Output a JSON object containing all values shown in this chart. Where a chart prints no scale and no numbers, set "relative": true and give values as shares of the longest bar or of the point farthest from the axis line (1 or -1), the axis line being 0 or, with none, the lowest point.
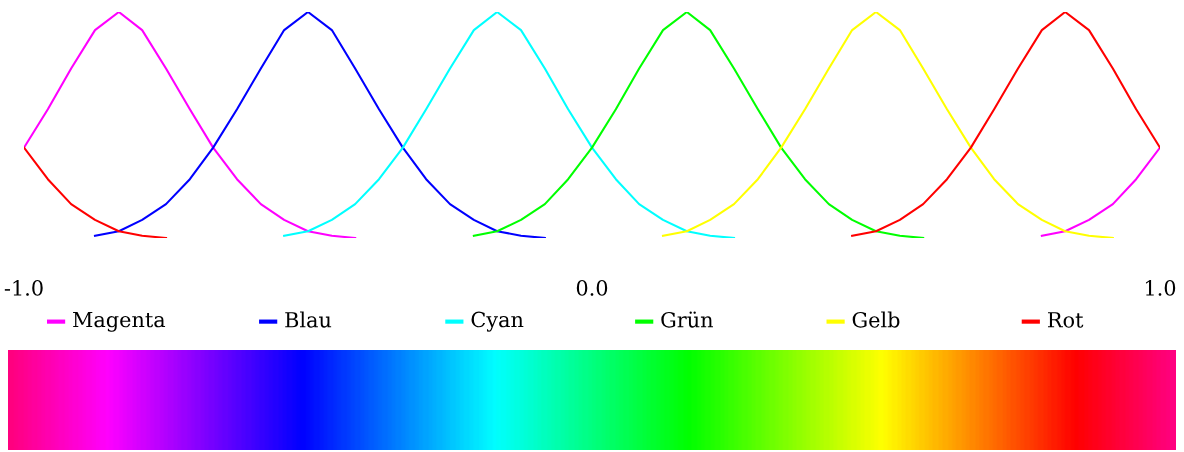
{
  "chart_data": {
    "type": "line",
    "relative": true,
    "legend": "bottom",
    "grid": false,
    "marker": "none",
    "line_style": "solid",
    "x": [
      -1,
      -0.958,
      -0.917,
      -0.875,
      -0.833,
      -0.792,
      -0.75,
      -0.708,
      -0.667,
      -0.625,
      -0.583,
      -0.542,
      -0.5,
      -0.458,
      -0.417,
      -0.375,
      -0.333,
      -0.292,
      -0.25,
      -0.208,
      -0.167,
      -0.125,
      -0.083,
      -0.042,
      0,
      0.042,
      0.083,
      0.125,
      0.167,
      0.208,
      0.25,
      0.292,
      0.333,
      0.375,
      0.417,
      0.458,
      0.5,
      0.542,
      0.583,
      0.625,
      0.667,
      0.708,
      0.75,
      0.792,
      0.833,
      0.875,
      0.917,
      0.958,
      1
    ],
    "xlim": [
      -1,
      1
    ],
    "xticks": [
      {
        "value": -1,
        "label": "-1.0"
      },
      {
        "value": 0,
        "label": "0.0"
      },
      {
        "value": 1,
        "label": "1.0"
      }
    ],
    "series": [
      {
        "name": "Magenta",
        "color": "#ff00ff",
        "values": [
          0.4,
          0.57,
          0.75,
          0.92,
          1,
          0.92,
          0.75,
          0.57,
          0.4,
          0.26,
          0.15,
          0.08,
          0.03,
          0.01,
          0,
          null,
          null,
          null,
          null,
          null,
          null,
          null,
          null,
          null,
          null,
          null,
          null,
          null,
          null,
          null,
          null,
          null,
          null,
          null,
          null,
          null,
          null,
          null,
          null,
          null,
          null,
          null,
          null,
          0.01,
          0.03,
          0.08,
          0.15,
          0.26,
          0.4
        ]
      },
      {
        "name": "Blau",
        "color": "#0000ff",
        "values": [
          null,
          null,
          null,
          0.01,
          0.03,
          0.08,
          0.15,
          0.26,
          0.4,
          0.57,
          0.75,
          0.92,
          1,
          0.92,
          0.75,
          0.57,
          0.4,
          0.26,
          0.15,
          0.08,
          0.03,
          0.01,
          0,
          null,
          null,
          null,
          null,
          null,
          null,
          null,
          null,
          null,
          null,
          null,
          null,
          null,
          null,
          null,
          null,
          null,
          null,
          null,
          null,
          null,
          null,
          null,
          null,
          null,
          null
        ]
      },
      {
        "name": "Cyan",
        "color": "#00ffff",
        "values": [
          null,
          null,
          null,
          null,
          null,
          null,
          null,
          null,
          null,
          null,
          null,
          0.01,
          0.03,
          0.08,
          0.15,
          0.26,
          0.4,
          0.57,
          0.75,
          0.92,
          1,
          0.92,
          0.75,
          0.57,
          0.4,
          0.26,
          0.15,
          0.08,
          0.03,
          0.01,
          0,
          null,
          null,
          null,
          null,
          null,
          null,
          null,
          null,
          null,
          null,
          null,
          null,
          null,
          null,
          null,
          null,
          null,
          null
        ]
      },
      {
        "name": "Grün",
        "color": "#00ff00",
        "values": [
          null,
          null,
          null,
          null,
          null,
          null,
          null,
          null,
          null,
          null,
          null,
          null,
          null,
          null,
          null,
          null,
          null,
          null,
          null,
          0.01,
          0.03,
          0.08,
          0.15,
          0.26,
          0.4,
          0.57,
          0.75,
          0.92,
          1,
          0.92,
          0.75,
          0.57,
          0.4,
          0.26,
          0.15,
          0.08,
          0.03,
          0.01,
          0,
          null,
          null,
          null,
          null,
          null,
          null,
          null,
          null,
          null,
          null
        ]
      },
      {
        "name": "Gelb",
        "color": "#ffff00",
        "values": [
          null,
          null,
          null,
          null,
          null,
          null,
          null,
          null,
          null,
          null,
          null,
          null,
          null,
          null,
          null,
          null,
          null,
          null,
          null,
          null,
          null,
          null,
          null,
          null,
          null,
          null,
          null,
          0.01,
          0.03,
          0.08,
          0.15,
          0.26,
          0.4,
          0.57,
          0.75,
          0.92,
          1,
          0.92,
          0.75,
          0.57,
          0.4,
          0.26,
          0.15,
          0.08,
          0.03,
          0.01,
          0,
          null,
          null
        ]
      },
      {
        "name": "Rot",
        "color": "#ff0000",
        "values": [
          0.4,
          0.26,
          0.15,
          0.08,
          0.03,
          0.01,
          0,
          null,
          null,
          null,
          null,
          null,
          null,
          null,
          null,
          null,
          null,
          null,
          null,
          null,
          null,
          null,
          null,
          null,
          null,
          null,
          null,
          null,
          null,
          null,
          null,
          null,
          null,
          null,
          null,
          0.01,
          0.03,
          0.08,
          0.15,
          0.26,
          0.4,
          0.57,
          0.75,
          0.92,
          1,
          0.92,
          0.75,
          0.57,
          0.4
        ]
      }
    ]
  }
}
